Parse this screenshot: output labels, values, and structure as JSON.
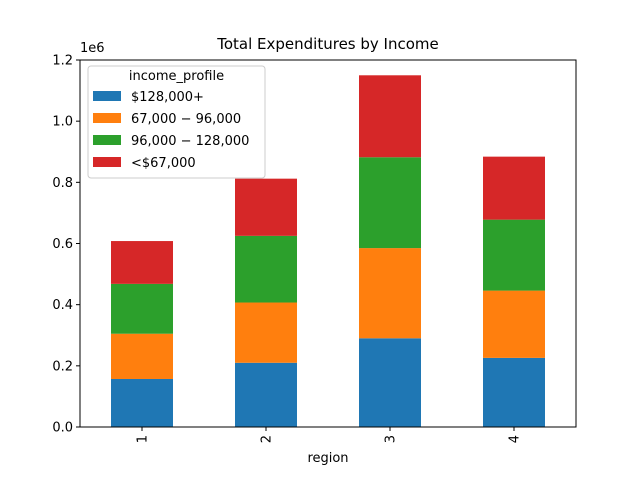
{
  "chart_data": {
    "type": "bar",
    "stacked": true,
    "title": "Total Expenditures by Income",
    "xlabel": "region",
    "ylabel": "",
    "y_offset_label": "1e6",
    "categories": [
      "1",
      "2",
      "3",
      "4"
    ],
    "ylim": [
      0,
      1200000
    ],
    "yticks": [
      0,
      200000,
      400000,
      600000,
      800000,
      1000000,
      1200000
    ],
    "ytick_labels": [
      "0.0",
      "0.2",
      "0.4",
      "0.6",
      "0.8",
      "1.0",
      "1.2"
    ],
    "legend_title": "income_profile",
    "legend_position": "top-left",
    "grid": false,
    "series": [
      {
        "name": "$128,000+",
        "color": "#1f77b4",
        "values": [
          157000,
          210000,
          290000,
          226000
        ]
      },
      {
        "name": "67,000 − 96,000",
        "color": "#ff7f0e",
        "values": [
          148000,
          197000,
          295000,
          220000
        ]
      },
      {
        "name": "96,000 − 128,000",
        "color": "#2ca02c",
        "values": [
          163000,
          218000,
          297000,
          232000
        ]
      },
      {
        "name": "<$67,000",
        "color": "#d62728",
        "values": [
          140000,
          187000,
          268000,
          206000
        ]
      }
    ]
  }
}
